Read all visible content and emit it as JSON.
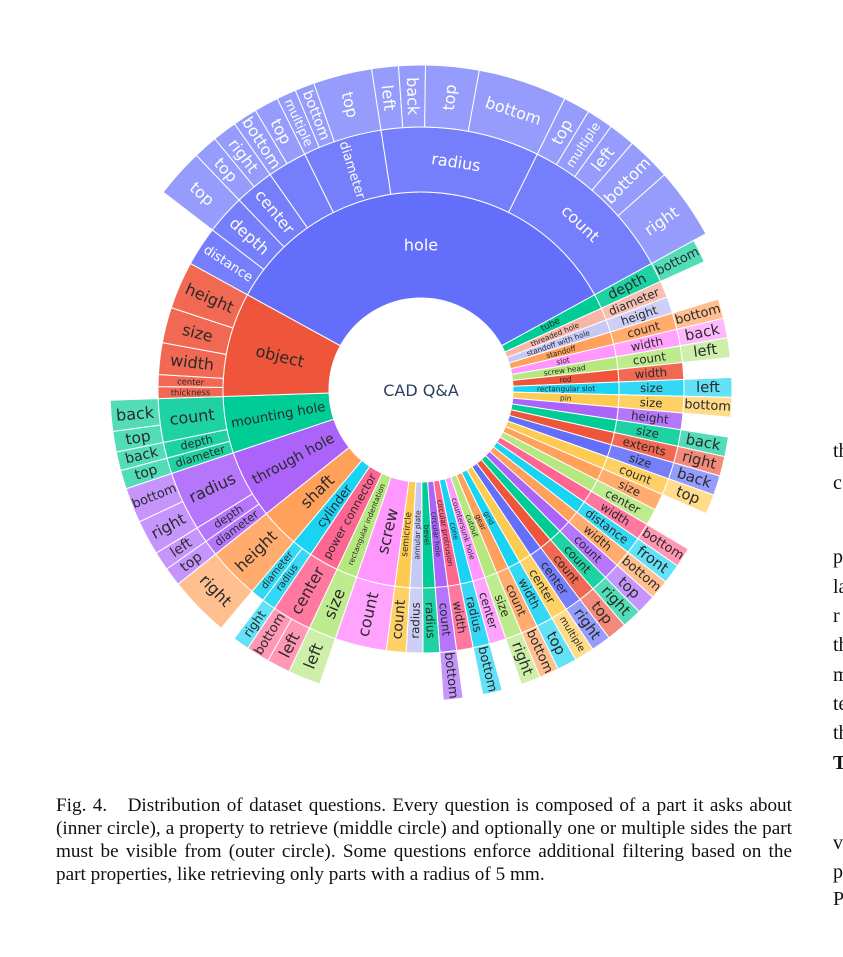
{
  "center_label": "CAD Q&A",
  "caption": {
    "label": "Fig. 4.",
    "text": "Distribution of dataset questions. Every question is composed of a part it asks about (inner circle), a property to retrieve (middle circle) and optionally one or multiple sides the part must be visible from (outer circle). Some questions enforce additional filtering based on the part properties, like retrieving only parts with a radius of 5 mm."
  },
  "right_column_fragments": [
    "th",
    "c",
    "",
    "p",
    "la",
    "r",
    "th",
    "m",
    "te",
    "th",
    "T",
    "",
    "v",
    "p",
    "P"
  ],
  "chart_data": {
    "type": "sunburst",
    "title": "",
    "rings": [
      "part (inner)",
      "property (middle)",
      "side (outer)"
    ],
    "data": [
      {
        "label": "hole",
        "color": "#636efa",
        "value": 14,
        "children": [
          {
            "label": "distance",
            "value": 1,
            "children": []
          },
          {
            "label": "depth",
            "value": 1,
            "children": [
              {
                "label": "top",
                "value": 1
              }
            ]
          },
          {
            "label": "center",
            "value": 1,
            "children": [
              {
                "label": "top",
                "value": 0.5
              },
              {
                "label": "right",
                "value": 0.5
              }
            ]
          },
          {
            "label": "",
            "value": 1,
            "children": [
              {
                "label": "bottom",
                "value": 0.5
              },
              {
                "label": "top",
                "value": 0.5
              }
            ]
          },
          {
            "label": "diameter",
            "value": 2,
            "children": [
              {
                "label": "multiple",
                "value": 0.3
              },
              {
                "label": "bottom",
                "value": 0.3
              },
              {
                "label": "top",
                "value": 0.9
              }
            ]
          },
          {
            "label": "radius",
            "value": 4,
            "children": [
              {
                "label": "left",
                "value": 0.3
              },
              {
                "label": "back",
                "value": 0.3
              },
              {
                "label": "top",
                "value": 0.6
              },
              {
                "label": "bottom",
                "value": 1
              }
            ]
          },
          {
            "label": "count",
            "value": 4,
            "children": [
              {
                "label": "top",
                "value": 0.3
              },
              {
                "label": "multiple",
                "value": 0.3
              },
              {
                "label": "left",
                "value": 0.3
              },
              {
                "label": "bottom",
                "value": 0.5
              },
              {
                "label": "right",
                "value": 0.8
              }
            ]
          }
        ]
      },
      {
        "label": "tube",
        "color": "#00cc96",
        "value": 0.5,
        "children": [
          {
            "label": "depth",
            "value": 0.5,
            "children": [
              {
                "label": "bottom",
                "value": 0.5
              }
            ]
          }
        ]
      },
      {
        "label": "threaded hole",
        "color": "#f7b6a8",
        "value": 0.42,
        "children": [
          {
            "label": "diameter",
            "value": 0.42,
            "children": []
          }
        ]
      },
      {
        "label": "standoff with hole",
        "color": "#c6c9f5",
        "value": 0.42,
        "children": [
          {
            "label": "height",
            "value": 0.42,
            "children": []
          }
        ]
      },
      {
        "label": "standoff",
        "color": "#ffa15a",
        "value": 0.42,
        "children": [
          {
            "label": "count",
            "value": 0.42,
            "children": [
              {
                "label": "bottom",
                "value": 0.42
              }
            ]
          }
        ]
      },
      {
        "label": "slot",
        "color": "#ff97ff",
        "value": 0.42,
        "children": [
          {
            "label": "width",
            "value": 0.42,
            "children": [
              {
                "label": "back",
                "value": 0.42
              }
            ]
          }
        ]
      },
      {
        "label": "screw head",
        "color": "#b6e880",
        "value": 0.42,
        "children": [
          {
            "label": "count",
            "value": 0.42,
            "children": [
              {
                "label": "left",
                "value": 0.42
              }
            ]
          }
        ]
      },
      {
        "label": "rod",
        "color": "#ef553b",
        "value": 0.42,
        "children": [
          {
            "label": "width",
            "value": 0.42,
            "children": []
          }
        ]
      },
      {
        "label": "rectangular slot",
        "color": "#19d3f3",
        "value": 0.42,
        "children": [
          {
            "label": "size",
            "value": 0.42,
            "children": [
              {
                "label": "left",
                "value": 0.42
              }
            ]
          }
        ]
      },
      {
        "label": "pin",
        "color": "#fecb52",
        "value": 0.42,
        "children": [
          {
            "label": "size",
            "value": 0.42,
            "children": [
              {
                "label": "bottom",
                "value": 0.42
              }
            ]
          }
        ]
      },
      {
        "label": "",
        "color": "#ab63fa",
        "value": 0.42,
        "children": [
          {
            "label": "height",
            "value": 0.42,
            "children": []
          }
        ]
      },
      {
        "label": "",
        "color": "#00cc96",
        "value": 0.42,
        "children": [
          {
            "label": "size",
            "value": 0.42,
            "children": [
              {
                "label": "back",
                "value": 0.42
              }
            ]
          }
        ]
      },
      {
        "label": "",
        "color": "#ef553b",
        "value": 0.42,
        "children": [
          {
            "label": "extents",
            "value": 0.42,
            "children": [
              {
                "label": "right",
                "value": 0.42
              }
            ]
          }
        ]
      },
      {
        "label": "",
        "color": "#636efa",
        "value": 0.42,
        "children": [
          {
            "label": "size",
            "value": 0.42,
            "children": [
              {
                "label": "back",
                "value": 0.42
              }
            ]
          }
        ]
      },
      {
        "label": "",
        "color": "#fecb52",
        "value": 0.42,
        "children": [
          {
            "label": "count",
            "value": 0.42,
            "children": [
              {
                "label": "top",
                "value": 0.42
              }
            ]
          }
        ]
      },
      {
        "label": "",
        "color": "#ffa15a",
        "value": 0.42,
        "children": [
          {
            "label": "size",
            "value": 0.42,
            "children": []
          }
        ]
      },
      {
        "label": "",
        "color": "#b6e880",
        "value": 0.42,
        "children": [
          {
            "label": "center",
            "value": 0.42,
            "children": []
          }
        ]
      },
      {
        "label": "",
        "color": "#ff6692",
        "value": 0.42,
        "children": [
          {
            "label": "width",
            "value": 0.42,
            "children": [
              {
                "label": "bottom",
                "value": 0.42
              }
            ]
          }
        ]
      },
      {
        "label": "",
        "color": "#19d3f3",
        "value": 0.42,
        "children": [
          {
            "label": "distance",
            "value": 0.42,
            "children": [
              {
                "label": "front",
                "value": 0.42
              }
            ]
          }
        ]
      },
      {
        "label": "",
        "color": "#ffa15a",
        "value": 0.42,
        "children": [
          {
            "label": "width",
            "value": 0.42,
            "children": [
              {
                "label": "bottom",
                "value": 0.42
              }
            ]
          }
        ]
      },
      {
        "label": "",
        "color": "#ab63fa",
        "value": 0.42,
        "children": [
          {
            "label": "count",
            "value": 0.42,
            "children": [
              {
                "label": "top",
                "value": 0.42
              }
            ]
          }
        ]
      },
      {
        "label": "",
        "color": "#00cc96",
        "value": 0.42,
        "children": [
          {
            "label": "count",
            "value": 0.42,
            "children": [
              {
                "label": "right",
                "value": 0.42
              }
            ]
          }
        ]
      },
      {
        "label": "",
        "color": "#ef553b",
        "value": 0.42,
        "children": [
          {
            "label": "count",
            "value": 0.42,
            "children": [
              {
                "label": "top",
                "value": 0.42
              }
            ]
          }
        ]
      },
      {
        "label": "",
        "color": "#636efa",
        "value": 0.42,
        "children": [
          {
            "label": "center",
            "value": 0.42,
            "children": [
              {
                "label": "right",
                "value": 0.42
              }
            ]
          }
        ]
      },
      {
        "label": "",
        "color": "#fecb52",
        "value": 0.42,
        "children": [
          {
            "label": "center",
            "value": 0.42,
            "children": [
              {
                "label": "multiple",
                "value": 0.42
              }
            ]
          }
        ]
      },
      {
        "label": "grid",
        "color": "#19d3f3",
        "value": 0.42,
        "children": [
          {
            "label": "width",
            "value": 0.42,
            "children": [
              {
                "label": "top",
                "value": 0.42
              }
            ]
          }
        ]
      },
      {
        "label": "gear",
        "color": "#ffa15a",
        "value": 0.42,
        "children": [
          {
            "label": "count",
            "value": 0.42,
            "children": [
              {
                "label": "bottom",
                "value": 0.42
              }
            ]
          }
        ]
      },
      {
        "label": "cutout",
        "color": "#b6e880",
        "value": 0.42,
        "children": [
          {
            "label": "size",
            "value": 0.42,
            "children": [
              {
                "label": "right",
                "value": 0.42
              }
            ]
          }
        ]
      },
      {
        "label": "countersunk hole",
        "color": "#ff97ff",
        "value": 0.42,
        "children": [
          {
            "label": "center",
            "value": 0.42,
            "children": []
          }
        ]
      },
      {
        "label": "cone",
        "color": "#19d3f3",
        "value": 0.42,
        "children": [
          {
            "label": "radius",
            "value": 0.42,
            "children": [
              {
                "label": "bottom",
                "value": 0.42
              }
            ]
          }
        ]
      },
      {
        "label": "circular protrusion",
        "color": "#ff6692",
        "value": 0.42,
        "children": [
          {
            "label": "width",
            "value": 0.42,
            "children": []
          }
        ]
      },
      {
        "label": "circular hole",
        "color": "#ab63fa",
        "value": 0.42,
        "children": [
          {
            "label": "count",
            "value": 0.42,
            "children": [
              {
                "label": "bottom",
                "value": 0.42
              }
            ]
          }
        ]
      },
      {
        "label": "bevel",
        "color": "#00cc96",
        "value": 0.42,
        "children": [
          {
            "label": "radius",
            "value": 0.42,
            "children": []
          }
        ]
      },
      {
        "label": "annular plate",
        "color": "#c6c9f5",
        "value": 0.42,
        "children": [
          {
            "label": "radius",
            "value": 0.42,
            "children": []
          }
        ]
      },
      {
        "label": "semicircle",
        "color": "#fecb52",
        "value": 0.5,
        "children": [
          {
            "label": "count",
            "value": 0.5,
            "children": []
          }
        ]
      },
      {
        "label": "screw",
        "color": "#ff97ff",
        "value": 1.3,
        "children": [
          {
            "label": "count",
            "value": 1.3,
            "children": []
          }
        ]
      },
      {
        "label": "rectangular indentation",
        "color": "#b6e880",
        "value": 0.7,
        "children": [
          {
            "label": "size",
            "value": 0.7,
            "children": [
              {
                "label": "left",
                "value": 0.7
              }
            ]
          }
        ]
      },
      {
        "label": "power connector",
        "color": "#ff6692",
        "value": 1,
        "children": [
          {
            "label": "center",
            "value": 1,
            "children": [
              {
                "label": "left",
                "value": 0.5
              },
              {
                "label": "bottom",
                "value": 0.5
              }
            ]
          }
        ]
      },
      {
        "label": "cylinder",
        "color": "#19d3f3",
        "value": 0.7,
        "children": [
          {
            "label": "radius",
            "value": 0.35,
            "children": [
              {
                "label": "right",
                "value": 0.35
              }
            ]
          },
          {
            "label": "diameter",
            "value": 0.35,
            "children": []
          }
        ]
      },
      {
        "label": "shaft",
        "color": "#ffa15a",
        "value": 1.3,
        "children": [
          {
            "label": "height",
            "value": 1.3,
            "children": [
              {
                "label": "right",
                "value": 1.3
              }
            ]
          }
        ]
      },
      {
        "label": "through hole",
        "color": "#ab63fa",
        "value": 2.3,
        "children": [
          {
            "label": "diameter",
            "value": 0.4,
            "children": [
              {
                "label": "top",
                "value": 0.4
              }
            ]
          },
          {
            "label": "depth",
            "value": 0.4,
            "children": [
              {
                "label": "left",
                "value": 0.4
              }
            ]
          },
          {
            "label": "radius",
            "value": 1.5,
            "children": [
              {
                "label": "right",
                "value": 0.5
              },
              {
                "label": "bottom",
                "value": 0.5
              }
            ]
          }
        ]
      },
      {
        "label": "mounting hole",
        "color": "#00cc96",
        "value": 1.9,
        "children": [
          {
            "label": "diameter",
            "value": 0.4,
            "children": [
              {
                "label": "top",
                "value": 0.4
              }
            ]
          },
          {
            "label": "depth",
            "value": 0.4,
            "children": [
              {
                "label": "back",
                "value": 0.4
              }
            ]
          },
          {
            "label": "count",
            "value": 1.1,
            "children": [
              {
                "label": "top",
                "value": 0.4
              },
              {
                "label": "back",
                "value": 0.6
              }
            ]
          }
        ]
      },
      {
        "label": "object",
        "color": "#ef553b",
        "value": 3.5,
        "children": [
          {
            "label": "thickness",
            "value": 0.3,
            "children": []
          },
          {
            "label": "center",
            "value": 0.3,
            "children": []
          },
          {
            "label": "width",
            "value": 0.8,
            "children": []
          },
          {
            "label": "size",
            "value": 0.9,
            "children": []
          },
          {
            "label": "height",
            "value": 1.2,
            "children": []
          }
        ]
      }
    ]
  }
}
